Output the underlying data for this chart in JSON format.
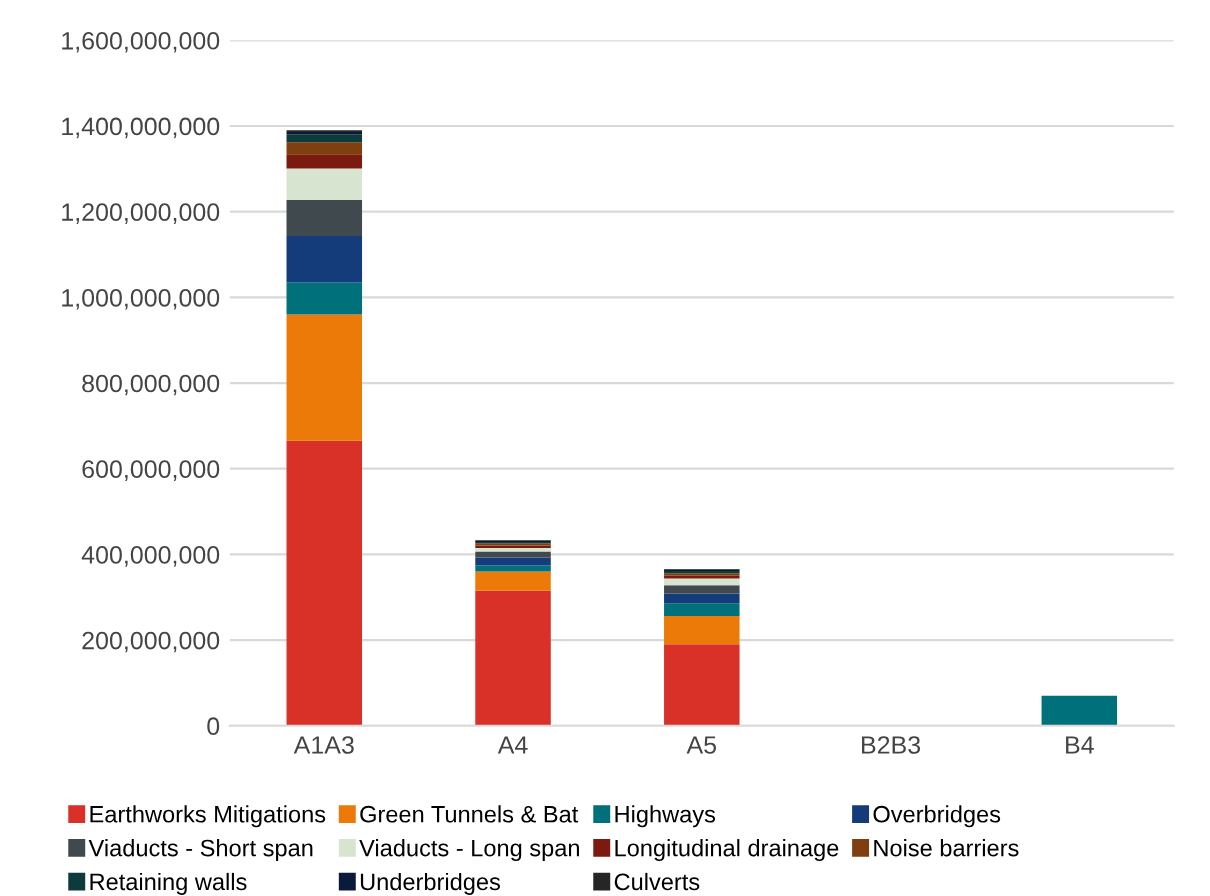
{
  "chart_data": {
    "type": "bar",
    "stacked": true,
    "categories": [
      "A1A3",
      "A4",
      "A5",
      "B2B3",
      "B4"
    ],
    "series": [
      {
        "name": "Earthworks Mitigations",
        "color": "#d93127",
        "values": [
          665000000,
          315000000,
          190000000,
          0,
          0
        ]
      },
      {
        "name": "Green Tunnels & Bat",
        "color": "#ec7a08",
        "values": [
          295000000,
          45000000,
          66000000,
          0,
          0
        ]
      },
      {
        "name": "Highways",
        "color": "#00707a",
        "values": [
          75000000,
          14000000,
          30000000,
          0,
          70000000
        ]
      },
      {
        "name": "Overbridges",
        "color": "#143b7a",
        "values": [
          108000000,
          19000000,
          23000000,
          0,
          0
        ]
      },
      {
        "name": "Viaducts - Short span",
        "color": "#404a4e",
        "values": [
          84000000,
          14000000,
          19000000,
          0,
          0
        ]
      },
      {
        "name": "Viaducts - Long span",
        "color": "#d7e4cf",
        "values": [
          74000000,
          8000000,
          16000000,
          0,
          0
        ]
      },
      {
        "name": "Longitudinal drainage",
        "color": "#7d1a10",
        "values": [
          33000000,
          6000000,
          6000000,
          0,
          0
        ]
      },
      {
        "name": "Noise barriers",
        "color": "#7f3f0e",
        "values": [
          28000000,
          5000000,
          6000000,
          0,
          0
        ]
      },
      {
        "name": "Retaining walls",
        "color": "#0d3a3a",
        "values": [
          19000000,
          3000000,
          5000000,
          0,
          0
        ]
      },
      {
        "name": "Underbridges",
        "color": "#0a1a3a",
        "values": [
          5000000,
          2000000,
          3000000,
          0,
          0
        ]
      },
      {
        "name": "Culverts",
        "color": "#262626",
        "values": [
          4000000,
          2000000,
          2000000,
          0,
          0
        ]
      }
    ],
    "ylim": [
      0,
      1600000000
    ],
    "yticks": [
      0,
      {
        "value": 200000000,
        "label": "200,000,000"
      },
      {
        "value": 400000000,
        "label": "400,000,000"
      },
      {
        "value": 600000000,
        "label": "600,000,000"
      },
      {
        "value": 800000000,
        "label": "800,000,000"
      },
      {
        "value": 1000000000,
        "label": "1,000,000,000"
      },
      {
        "value": 1200000000,
        "label": "1,200,000,000"
      },
      {
        "value": 1400000000,
        "label": "1,400,000,000"
      },
      {
        "value": 1600000000,
        "label": "1,600,000,000"
      }
    ],
    "grid": "y",
    "legend": "bottom"
  }
}
